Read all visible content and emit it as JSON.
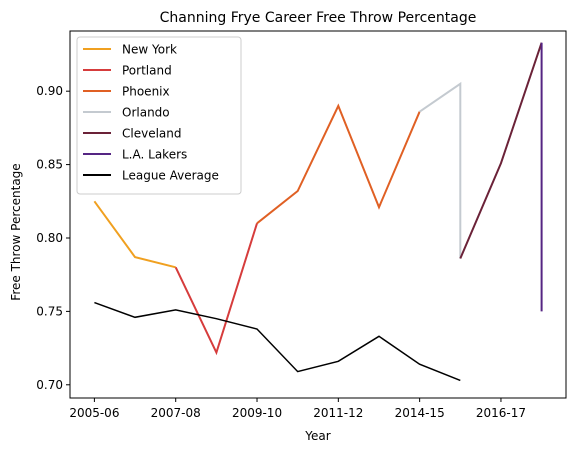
{
  "chart_data": {
    "type": "line",
    "title": "Channing Frye Career Free Throw Percentage",
    "xlabel": "Year",
    "ylabel": "Free Throw Percentage",
    "x_ticks": [
      "2005-06",
      "2007-08",
      "2009-10",
      "2011-12",
      "2014-15",
      "2016-17"
    ],
    "x_tick_positions": [
      0,
      2,
      4,
      6,
      8,
      10
    ],
    "xlim": [
      -0.6,
      11.6
    ],
    "ylim": [
      0.691,
      0.941
    ],
    "y_ticks": [
      0.7,
      0.75,
      0.8,
      0.85,
      0.9
    ],
    "legend_position": "top-left",
    "grid": false,
    "series": [
      {
        "name": "New York",
        "color": "#f0a020",
        "points": [
          [
            0,
            0.825
          ],
          [
            1,
            0.787
          ],
          [
            2,
            0.78
          ]
        ]
      },
      {
        "name": "Portland",
        "color": "#d63c3c",
        "points": [
          [
            2,
            0.78
          ],
          [
            3,
            0.722
          ],
          [
            4,
            0.81
          ]
        ]
      },
      {
        "name": "Phoenix",
        "color": "#e06024",
        "points": [
          [
            4,
            0.81
          ],
          [
            5,
            0.832
          ],
          [
            6,
            0.89
          ],
          [
            7,
            0.821
          ],
          [
            8,
            0.886
          ]
        ]
      },
      {
        "name": "Orlando",
        "color": "#c4cad0",
        "points": [
          [
            8,
            0.886
          ],
          [
            9,
            0.905
          ],
          [
            9,
            0.786
          ]
        ]
      },
      {
        "name": "Cleveland",
        "color": "#6b2238",
        "points": [
          [
            9,
            0.786
          ],
          [
            10,
            0.851
          ],
          [
            11,
            0.933
          ]
        ]
      },
      {
        "name": "L.A. Lakers",
        "color": "#552583",
        "points": [
          [
            11,
            0.933
          ],
          [
            11,
            0.75
          ]
        ]
      },
      {
        "name": "League Average",
        "color": "#000000",
        "points": [
          [
            0,
            0.756
          ],
          [
            1,
            0.746
          ],
          [
            2,
            0.751
          ],
          [
            3,
            0.745
          ],
          [
            4,
            0.738
          ],
          [
            5,
            0.709
          ],
          [
            6,
            0.716
          ],
          [
            7,
            0.733
          ],
          [
            8,
            0.714
          ],
          [
            9,
            0.703
          ]
        ]
      }
    ]
  }
}
